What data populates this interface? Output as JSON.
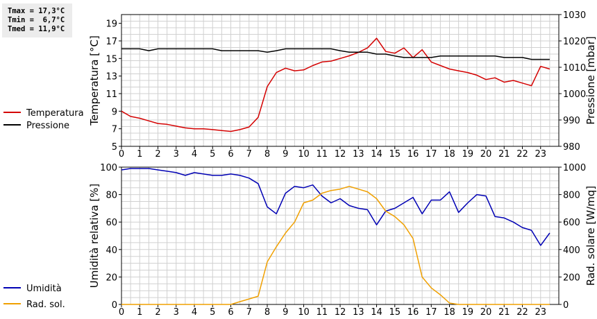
{
  "stats": {
    "tmax": "Tmax = 17,3°C",
    "tmin": "Tmin =  6,7°C",
    "tmed": "Tmed = 11,9°C"
  },
  "colors": {
    "temperature": "#d40000",
    "pressure": "#000000",
    "humidity": "#0000b4",
    "radiation": "#f0a000",
    "grid": "#d0d0d0"
  },
  "chart_data": [
    {
      "type": "line",
      "x_ticks": [
        "0",
        "1",
        "2",
        "3",
        "4",
        "5",
        "6",
        "7",
        "8",
        "9",
        "10",
        "11",
        "12",
        "13",
        "14",
        "15",
        "16",
        "17",
        "18",
        "19",
        "20",
        "21",
        "22",
        "23"
      ],
      "xlim": [
        0,
        24
      ],
      "ylabel_left": "Temperatura [°C]",
      "ylabel_right": "Pressione [mbar]",
      "ylim_left": [
        5,
        20
      ],
      "ylim_right": [
        980,
        1030
      ],
      "yticks_left": [
        5,
        7,
        9,
        11,
        13,
        15,
        17,
        19
      ],
      "yticks_right": [
        980,
        990,
        1000,
        1010,
        1020,
        1030
      ],
      "grid": true,
      "legend_placement": "left",
      "series": [
        {
          "name": "Temperatura",
          "axis": "left",
          "x": [
            0,
            0.5,
            1,
            1.5,
            2,
            2.5,
            3,
            3.5,
            4,
            4.5,
            5,
            5.5,
            6,
            6.5,
            7,
            7.5,
            8,
            8.5,
            9,
            9.5,
            10,
            10.5,
            11,
            11.5,
            12,
            12.5,
            13,
            13.5,
            14,
            14.5,
            15,
            15.5,
            16,
            16.5,
            17,
            17.5,
            18,
            18.5,
            19,
            19.5,
            20,
            20.5,
            21,
            21.5,
            22,
            22.5,
            23,
            23.5
          ],
          "y": [
            9.0,
            8.4,
            8.2,
            7.9,
            7.6,
            7.5,
            7.3,
            7.1,
            7.0,
            7.0,
            6.9,
            6.8,
            6.7,
            6.9,
            7.2,
            8.3,
            11.8,
            13.4,
            13.9,
            13.6,
            13.7,
            14.2,
            14.6,
            14.7,
            15.0,
            15.3,
            15.7,
            16.2,
            17.3,
            15.8,
            15.6,
            16.2,
            15.1,
            16.0,
            14.6,
            14.2,
            13.8,
            13.6,
            13.4,
            13.1,
            12.6,
            12.8,
            12.3,
            12.5,
            12.2,
            11.9,
            14.1,
            13.8
          ]
        },
        {
          "name": "Pressione",
          "axis": "right",
          "x": [
            0,
            0.5,
            1,
            1.5,
            2,
            2.5,
            3,
            3.5,
            4,
            4.5,
            5,
            5.5,
            6,
            6.5,
            7,
            7.5,
            8,
            8.5,
            9,
            9.5,
            10,
            10.5,
            11,
            11.5,
            12,
            12.5,
            13,
            13.5,
            14,
            14.5,
            15,
            15.5,
            16,
            16.5,
            17,
            17.5,
            18,
            18.5,
            19,
            19.5,
            20,
            20.5,
            21,
            21.5,
            22,
            22.5,
            23,
            23.5
          ],
          "y": [
            1017,
            1017,
            1017,
            1016.3,
            1017,
            1017,
            1017,
            1017,
            1017,
            1017,
            1017,
            1016.3,
            1016.3,
            1016.3,
            1016.3,
            1016.3,
            1015.7,
            1016.3,
            1017,
            1017,
            1017,
            1017,
            1017,
            1017,
            1016.3,
            1015.7,
            1015.7,
            1015.7,
            1015,
            1015,
            1014.3,
            1013.7,
            1013.7,
            1013.7,
            1013.7,
            1014.3,
            1014.3,
            1014.3,
            1014.3,
            1014.3,
            1014.3,
            1014.3,
            1013.7,
            1013.7,
            1013.7,
            1013,
            1013,
            1013
          ]
        }
      ]
    },
    {
      "type": "line",
      "x_ticks": [
        "0",
        "1",
        "2",
        "3",
        "4",
        "5",
        "6",
        "7",
        "8",
        "9",
        "10",
        "11",
        "12",
        "13",
        "14",
        "15",
        "16",
        "17",
        "18",
        "19",
        "20",
        "21",
        "22",
        "23"
      ],
      "xlim": [
        0,
        24
      ],
      "ylabel_left": "Umidità relativa [%]",
      "ylabel_right": "Rad. solare [W/mq]",
      "ylim_left": [
        0,
        100
      ],
      "ylim_right": [
        0,
        1000
      ],
      "yticks_left": [
        0,
        20,
        40,
        60,
        80,
        100
      ],
      "yticks_right": [
        0,
        200,
        400,
        600,
        800,
        1000
      ],
      "grid": true,
      "legend_placement": "left",
      "series": [
        {
          "name": "Umidità",
          "axis": "left",
          "x": [
            0,
            0.5,
            1,
            1.5,
            2,
            2.5,
            3,
            3.5,
            4,
            4.5,
            5,
            5.5,
            6,
            6.5,
            7,
            7.5,
            8,
            8.5,
            9,
            9.5,
            10,
            10.5,
            11,
            11.5,
            12,
            12.5,
            13,
            13.5,
            14,
            14.5,
            15,
            15.5,
            16,
            16.5,
            17,
            17.5,
            18,
            18.5,
            19,
            19.5,
            20,
            20.5,
            21,
            21.5,
            22,
            22.5,
            23,
            23.5
          ],
          "y": [
            98,
            99,
            99,
            99,
            98,
            97,
            96,
            94,
            96,
            95,
            94,
            94,
            95,
            94,
            92,
            88,
            71,
            66,
            81,
            86,
            85,
            87,
            79,
            74,
            77,
            72,
            70,
            69,
            58,
            68,
            70,
            74,
            78,
            66,
            76,
            76,
            82,
            67,
            74,
            80,
            79,
            64,
            63,
            60,
            56,
            54,
            43,
            52
          ]
        },
        {
          "name": "Rad. sol.",
          "axis": "right",
          "x": [
            0,
            0.5,
            1,
            1.5,
            2,
            2.5,
            3,
            3.5,
            4,
            4.5,
            5,
            5.5,
            6,
            6.5,
            7,
            7.5,
            8,
            8.5,
            9,
            9.5,
            10,
            10.5,
            11,
            11.5,
            12,
            12.5,
            13,
            13.5,
            14,
            14.5,
            15,
            15.5,
            16,
            16.5,
            17,
            17.5,
            18,
            18.5,
            19,
            19.5,
            20,
            20.5,
            21,
            21.5,
            22,
            22.5,
            23,
            23.5
          ],
          "y": [
            0,
            0,
            0,
            0,
            0,
            0,
            0,
            0,
            0,
            0,
            0,
            0,
            0,
            20,
            40,
            60,
            310,
            420,
            520,
            600,
            740,
            760,
            810,
            830,
            840,
            860,
            840,
            820,
            770,
            680,
            640,
            580,
            480,
            200,
            120,
            70,
            10,
            0,
            0,
            0,
            0,
            0,
            0,
            0,
            0,
            0,
            0,
            0
          ]
        }
      ]
    }
  ]
}
